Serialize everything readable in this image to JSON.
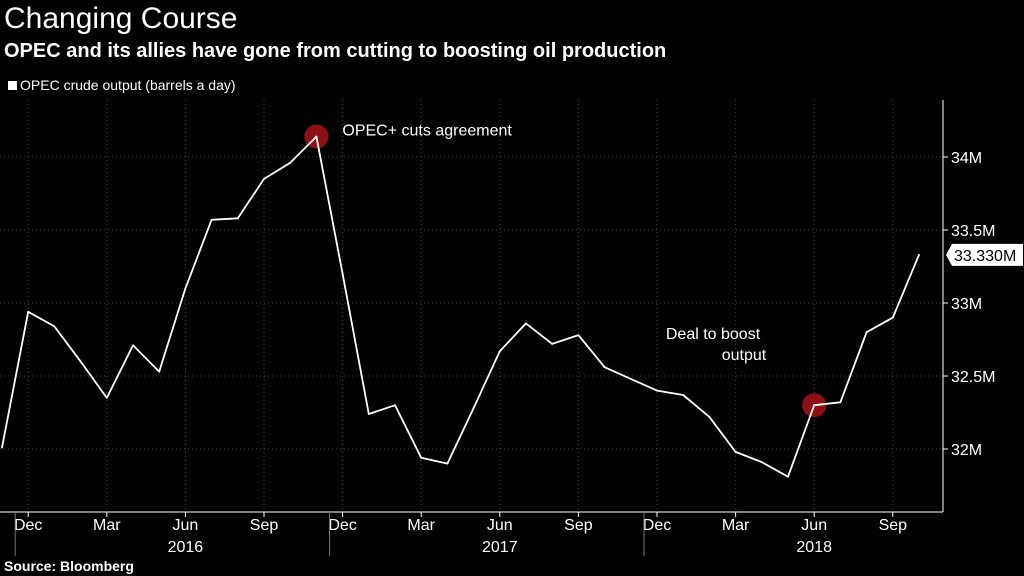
{
  "title": "Changing Course",
  "subtitle": "OPEC and its allies have gone from cutting to boosting oil production",
  "source": "Source: Bloomberg",
  "colors": {
    "background": "#000000",
    "line": "#ffffff",
    "grid": "#444444",
    "marker": "#c0141c"
  },
  "chart_data": {
    "type": "line",
    "title": "Changing Course",
    "subtitle": "OPEC and its allies have gone from cutting to boosting oil production",
    "legend_position": "top-left",
    "grid": true,
    "xlabel": "",
    "ylabel": "",
    "ylim": [
      31.65,
      34.4
    ],
    "y_ticks": [
      32.0,
      32.5,
      33.0,
      33.5,
      34.0
    ],
    "y_tick_labels": [
      "32M",
      "32.5M",
      "33M",
      "33.5M",
      "34M"
    ],
    "x_tick_labels": [
      {
        "label": "Dec",
        "date": "2015-12"
      },
      {
        "label": "Mar",
        "date": "2016-03"
      },
      {
        "label": "Jun",
        "date": "2016-06"
      },
      {
        "label": "Sep",
        "date": "2016-09"
      },
      {
        "label": "Dec",
        "date": "2016-12"
      },
      {
        "label": "Mar",
        "date": "2017-03"
      },
      {
        "label": "Jun",
        "date": "2017-06"
      },
      {
        "label": "Sep",
        "date": "2017-09"
      },
      {
        "label": "Dec",
        "date": "2017-12"
      },
      {
        "label": "Mar",
        "date": "2018-03"
      },
      {
        "label": "Jun",
        "date": "2018-06"
      },
      {
        "label": "Sep",
        "date": "2018-09"
      }
    ],
    "year_labels": [
      {
        "label": "2016",
        "date": "2016-06"
      },
      {
        "label": "2017",
        "date": "2017-06"
      },
      {
        "label": "2018",
        "date": "2018-06"
      }
    ],
    "series": [
      {
        "name": "OPEC crude output (barrels a day)",
        "x": [
          "2015-11",
          "2015-12",
          "2016-01",
          "2016-02",
          "2016-03",
          "2016-04",
          "2016-05",
          "2016-06",
          "2016-07",
          "2016-08",
          "2016-09",
          "2016-10",
          "2016-11",
          "2016-12",
          "2017-01",
          "2017-02",
          "2017-03",
          "2017-04",
          "2017-05",
          "2017-06",
          "2017-07",
          "2017-08",
          "2017-09",
          "2017-10",
          "2017-11",
          "2017-12",
          "2018-01",
          "2018-02",
          "2018-03",
          "2018-04",
          "2018-05",
          "2018-06",
          "2018-07",
          "2018-08",
          "2018-09",
          "2018-10"
        ],
        "values": [
          32.01,
          32.94,
          32.84,
          32.6,
          32.35,
          32.71,
          32.53,
          33.1,
          33.57,
          33.58,
          33.85,
          33.96,
          34.14,
          33.2,
          32.24,
          32.3,
          31.94,
          31.9,
          32.28,
          32.67,
          32.86,
          32.72,
          32.78,
          32.56,
          32.48,
          32.4,
          32.37,
          32.22,
          31.98,
          31.91,
          31.81,
          32.3,
          32.32,
          32.8,
          32.9,
          33.33
        ]
      }
    ],
    "last_value_label": "33.330M",
    "annotations": [
      {
        "text": "OPEC+ cuts agreement",
        "date": "2016-11",
        "value": 34.14
      },
      {
        "text": "Deal to boost output",
        "lines": [
          "Deal to boost",
          "output"
        ],
        "date": "2018-06",
        "value": 32.3
      }
    ]
  }
}
